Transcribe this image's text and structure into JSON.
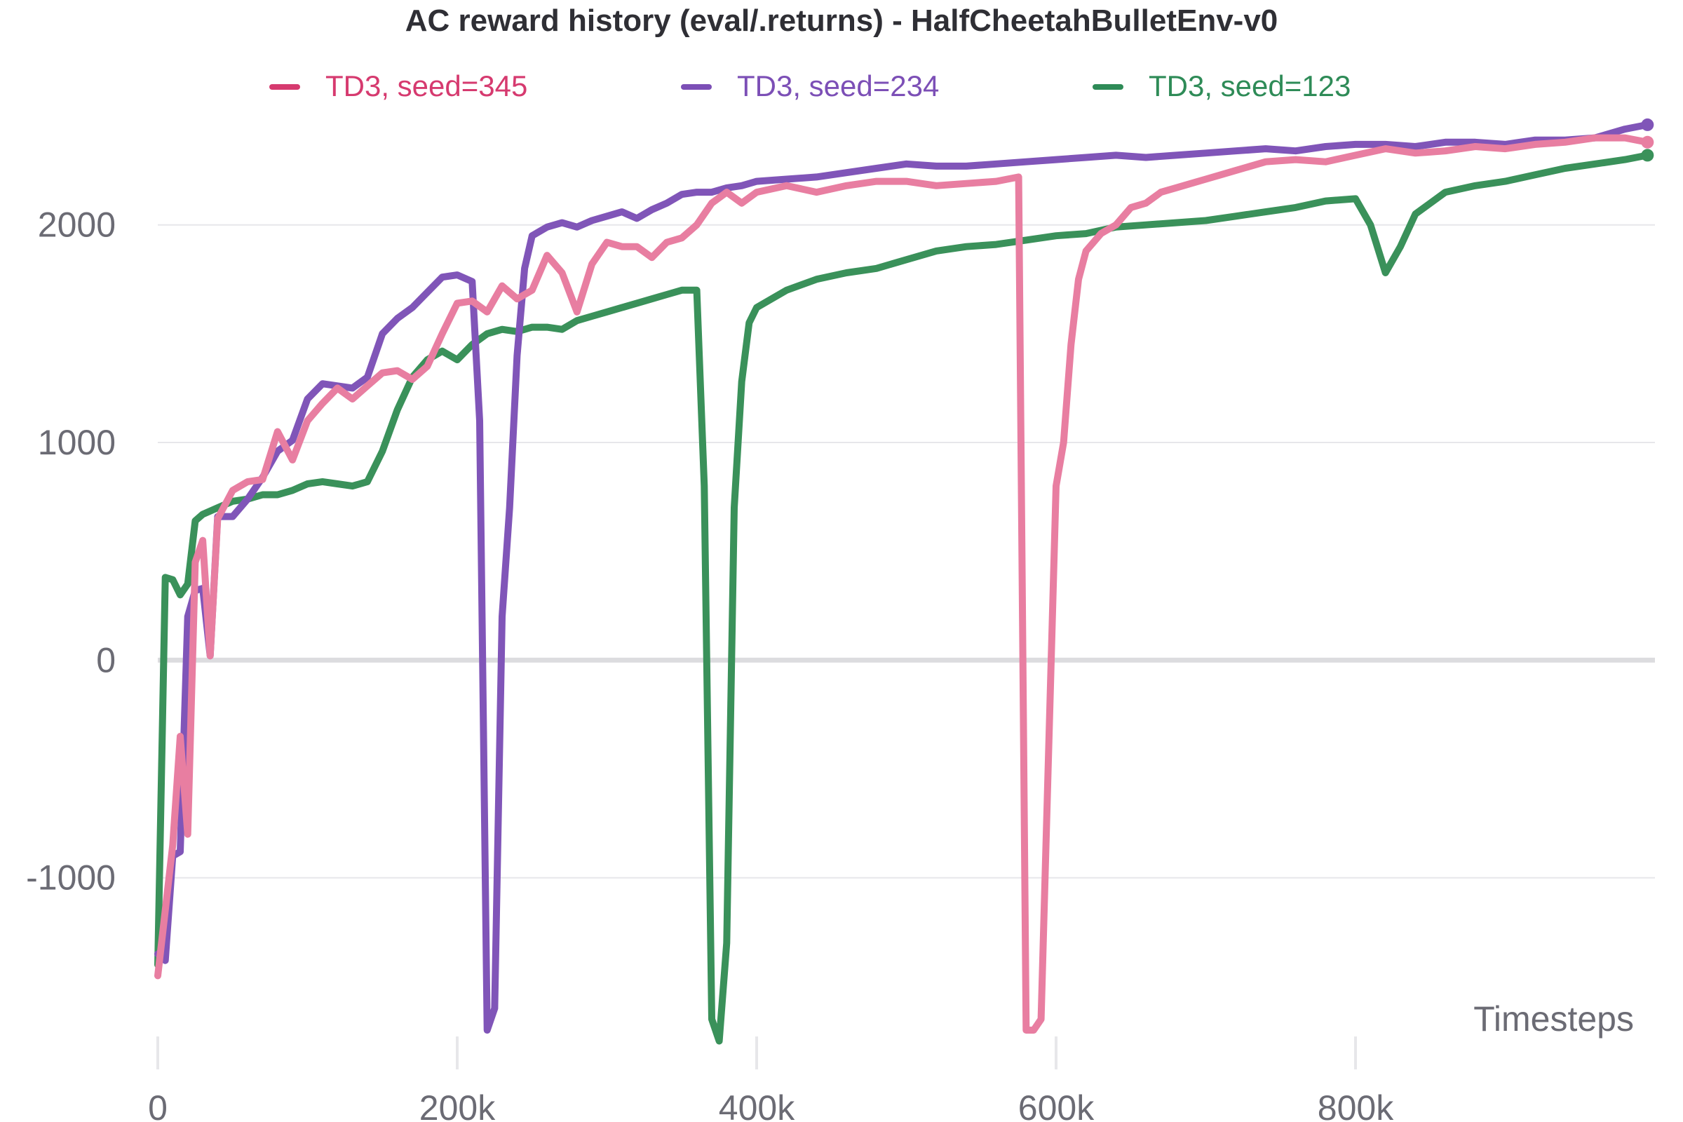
{
  "chart_data": {
    "type": "line",
    "title": "AC reward history (eval/.returns) - HalfCheetahBulletEnv-v0",
    "xlabel": "Timesteps",
    "ylabel": "",
    "xlim": [
      0,
      1000000
    ],
    "ylim": [
      -1800,
      2550
    ],
    "grid": true,
    "legend_position": "top",
    "y_ticks": [
      {
        "value": -1000,
        "label": "-1000"
      },
      {
        "value": 0,
        "label": "0"
      },
      {
        "value": 1000,
        "label": "1000"
      },
      {
        "value": 2000,
        "label": "2000"
      }
    ],
    "x_ticks": [
      {
        "value": 0,
        "label": "0"
      },
      {
        "value": 200000,
        "label": "200k"
      },
      {
        "value": 400000,
        "label": "400k"
      },
      {
        "value": 600000,
        "label": "600k"
      },
      {
        "value": 800000,
        "label": "800k"
      }
    ],
    "series": [
      {
        "name": "TD3, seed=345",
        "color": "#e87ea1",
        "legend_color": "#d63a6f",
        "x": [
          0,
          10000,
          15000,
          20000,
          25000,
          30000,
          35000,
          40000,
          50000,
          60000,
          70000,
          80000,
          90000,
          100000,
          110000,
          120000,
          130000,
          140000,
          150000,
          160000,
          170000,
          180000,
          190000,
          200000,
          210000,
          220000,
          230000,
          240000,
          250000,
          260000,
          270000,
          280000,
          290000,
          300000,
          310000,
          320000,
          330000,
          340000,
          350000,
          360000,
          370000,
          380000,
          390000,
          400000,
          420000,
          440000,
          460000,
          480000,
          500000,
          520000,
          540000,
          560000,
          575000,
          580000,
          585000,
          590000,
          600000,
          605000,
          610000,
          615000,
          620000,
          625000,
          630000,
          640000,
          650000,
          660000,
          670000,
          680000,
          700000,
          720000,
          740000,
          760000,
          780000,
          800000,
          820000,
          840000,
          860000,
          880000,
          900000,
          920000,
          940000,
          960000,
          980000,
          995000
        ],
        "y": [
          -1450,
          -850,
          -350,
          -800,
          450,
          550,
          20,
          650,
          780,
          820,
          830,
          1050,
          920,
          1100,
          1180,
          1250,
          1200,
          1260,
          1320,
          1330,
          1290,
          1350,
          1500,
          1640,
          1650,
          1600,
          1720,
          1660,
          1700,
          1860,
          1780,
          1600,
          1820,
          1920,
          1900,
          1900,
          1850,
          1920,
          1940,
          2000,
          2100,
          2150,
          2100,
          2150,
          2180,
          2150,
          2180,
          2200,
          2200,
          2180,
          2190,
          2200,
          2220,
          -1700,
          -1700,
          -1650,
          800,
          1000,
          1450,
          1750,
          1880,
          1920,
          1960,
          2000,
          2080,
          2100,
          2150,
          2170,
          2210,
          2250,
          2290,
          2300,
          2290,
          2320,
          2350,
          2330,
          2340,
          2360,
          2350,
          2370,
          2380,
          2400,
          2400,
          2380
        ]
      },
      {
        "name": "TD3, seed=234",
        "color": "#8055b8",
        "legend_color": "#7c4fb6",
        "x": [
          0,
          5000,
          10000,
          15000,
          20000,
          25000,
          30000,
          35000,
          40000,
          50000,
          60000,
          70000,
          80000,
          90000,
          100000,
          110000,
          120000,
          130000,
          140000,
          150000,
          160000,
          170000,
          180000,
          190000,
          200000,
          210000,
          215000,
          220000,
          225000,
          230000,
          235000,
          240000,
          245000,
          250000,
          260000,
          270000,
          280000,
          290000,
          300000,
          310000,
          320000,
          330000,
          340000,
          350000,
          360000,
          370000,
          380000,
          390000,
          400000,
          420000,
          440000,
          460000,
          480000,
          500000,
          520000,
          540000,
          560000,
          580000,
          600000,
          620000,
          640000,
          660000,
          680000,
          700000,
          720000,
          740000,
          760000,
          780000,
          800000,
          820000,
          840000,
          860000,
          880000,
          900000,
          920000,
          940000,
          960000,
          980000,
          995000
        ],
        "y": [
          -1350,
          -1380,
          -900,
          -880,
          200,
          320,
          330,
          20,
          660,
          660,
          740,
          840,
          960,
          1010,
          1200,
          1270,
          1260,
          1250,
          1300,
          1500,
          1570,
          1620,
          1690,
          1760,
          1770,
          1740,
          1100,
          -1700,
          -1600,
          200,
          700,
          1400,
          1800,
          1950,
          1990,
          2010,
          1990,
          2020,
          2040,
          2060,
          2030,
          2070,
          2100,
          2140,
          2150,
          2150,
          2170,
          2180,
          2200,
          2210,
          2220,
          2240,
          2260,
          2280,
          2270,
          2270,
          2280,
          2290,
          2300,
          2310,
          2320,
          2310,
          2320,
          2330,
          2340,
          2350,
          2340,
          2360,
          2370,
          2370,
          2360,
          2380,
          2380,
          2370,
          2390,
          2390,
          2400,
          2440,
          2460
        ]
      },
      {
        "name": "TD3, seed=123",
        "color": "#3a915a",
        "legend_color": "#2e8b57",
        "x": [
          0,
          5000,
          10000,
          15000,
          20000,
          25000,
          30000,
          40000,
          50000,
          60000,
          70000,
          80000,
          90000,
          100000,
          110000,
          120000,
          130000,
          140000,
          150000,
          160000,
          170000,
          180000,
          190000,
          200000,
          210000,
          220000,
          230000,
          240000,
          250000,
          260000,
          270000,
          280000,
          290000,
          300000,
          310000,
          320000,
          330000,
          340000,
          350000,
          360000,
          365000,
          370000,
          375000,
          380000,
          385000,
          390000,
          395000,
          400000,
          410000,
          420000,
          440000,
          460000,
          480000,
          500000,
          520000,
          540000,
          560000,
          580000,
          600000,
          620000,
          640000,
          660000,
          680000,
          700000,
          720000,
          740000,
          760000,
          780000,
          800000,
          810000,
          820000,
          830000,
          840000,
          860000,
          880000,
          900000,
          920000,
          940000,
          960000,
          980000,
          995000
        ],
        "y": [
          -1400,
          380,
          370,
          300,
          350,
          640,
          670,
          700,
          730,
          740,
          760,
          760,
          780,
          810,
          820,
          810,
          800,
          820,
          960,
          1150,
          1300,
          1380,
          1420,
          1380,
          1450,
          1500,
          1520,
          1510,
          1530,
          1530,
          1520,
          1560,
          1580,
          1600,
          1620,
          1640,
          1660,
          1680,
          1700,
          1700,
          800,
          -1650,
          -1750,
          -1300,
          700,
          1280,
          1550,
          1620,
          1660,
          1700,
          1750,
          1780,
          1800,
          1840,
          1880,
          1900,
          1910,
          1930,
          1950,
          1960,
          1990,
          2000,
          2010,
          2020,
          2040,
          2060,
          2080,
          2110,
          2120,
          2000,
          1780,
          1900,
          2050,
          2150,
          2180,
          2200,
          2230,
          2260,
          2280,
          2300,
          2320
        ]
      }
    ]
  }
}
